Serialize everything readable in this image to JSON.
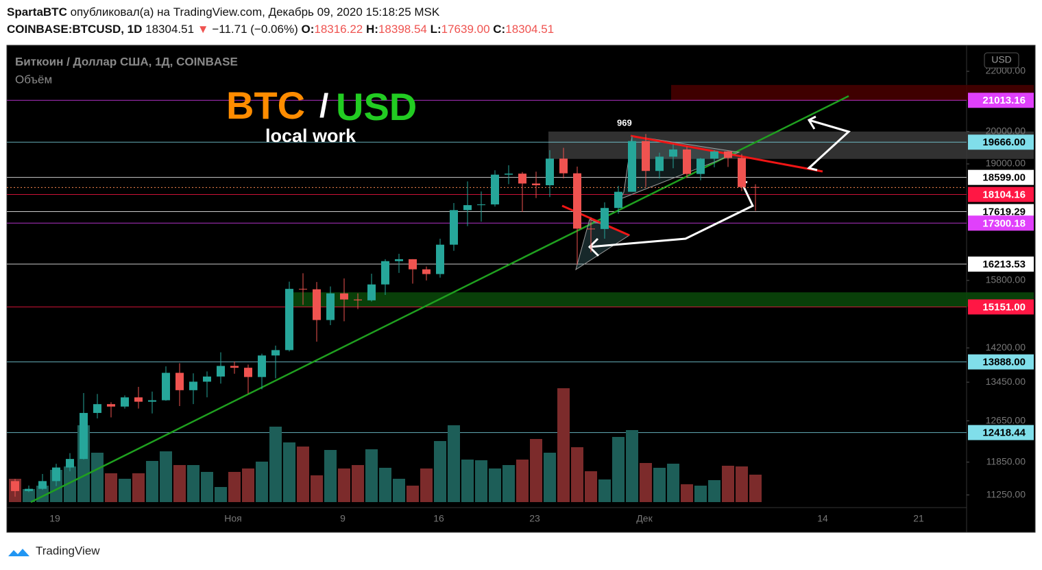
{
  "header": {
    "author": "SpartaBTC",
    "published": "опубликовал(а) на TradingView.com, Декабрь 09, 2020 15:18:25 MSK",
    "symbol": "COINBASE:BTCUSD, 1D",
    "change": "−11.71 (−0.06%)",
    "o": "O:",
    "h": "H:",
    "l": "L:",
    "c": "C:"
  },
  "footer": {
    "brand": "TradingView"
  },
  "chart_data": {
    "type": "candlestick",
    "legend_title": "Биткоин / Доллар США, 1Д, COINBASE",
    "volume_label": "Объём",
    "currency": "USD",
    "annotations": {
      "title_left": "BTC",
      "title_slash": "/",
      "title_right": "USD",
      "subtitle": "local work",
      "peak_label": "969"
    },
    "log_scale": true,
    "ylim": [
      11124,
      22926
    ],
    "yticks": [
      {
        "value": 22000,
        "label": "22000.00"
      },
      {
        "value": 20000,
        "label": "20000.00"
      },
      {
        "value": 19000,
        "label": "19000.00"
      },
      {
        "value": 15800,
        "label": "15800.00"
      },
      {
        "value": 14200,
        "label": "14200.00"
      },
      {
        "value": 13450,
        "label": "13450.00"
      },
      {
        "value": 12650,
        "label": "12650.00"
      },
      {
        "value": 11850,
        "label": "11850.00"
      },
      {
        "value": 11250,
        "label": "11250.00"
      }
    ],
    "categories": [
      null,
      null,
      null,
      "19",
      null,
      null,
      null,
      null,
      null,
      null,
      null,
      null,
      null,
      null,
      null,
      null,
      "Ноя",
      null,
      null,
      null,
      null,
      null,
      null,
      null,
      "9",
      null,
      null,
      null,
      null,
      null,
      null,
      "16",
      null,
      null,
      null,
      null,
      null,
      null,
      "23",
      null,
      null,
      null,
      null,
      null,
      null,
      null,
      "Дек",
      null,
      null,
      null,
      null,
      null,
      null,
      null,
      null,
      null,
      null,
      null,
      null,
      "14",
      null,
      null,
      null,
      null,
      null,
      null,
      "21",
      null,
      null,
      null
    ],
    "open": [
      11500,
      11320,
      11360,
      11500,
      11750,
      11910,
      12810,
      12990,
      12940,
      13130,
      13040,
      13070,
      13650,
      13280,
      13460,
      13570,
      13800,
      13760,
      13560,
      14030,
      14150,
      15590,
      15580,
      14840,
      15480,
      15330,
      15310,
      15700,
      16290,
      16340,
      16080,
      15960,
      16720,
      17660,
      17800,
      17820,
      18680,
      18710,
      18420,
      18370,
      19160,
      18720,
      17150,
      17140,
      17720,
      18180,
      19700,
      18790,
      19220,
      19440,
      18700,
      19160,
      19380,
      19180,
      18316.22,
      null,
      null,
      null,
      null,
      null,
      null,
      null,
      null,
      null,
      null,
      null,
      null,
      null,
      null,
      null
    ],
    "high": [
      11540,
      11420,
      11630,
      11820,
      12020,
      13220,
      13200,
      13030,
      13170,
      13350,
      13250,
      13790,
      13860,
      13640,
      13680,
      14100,
      13900,
      13830,
      14070,
      14250,
      15770,
      15980,
      15760,
      15650,
      15850,
      15480,
      15970,
      16340,
      16480,
      16340,
      16150,
      16880,
      17860,
      18480,
      18190,
      18810,
      18960,
      18760,
      18770,
      19420,
      19490,
      18920,
      17460,
      17880,
      18350,
      19860,
      19920,
      19340,
      19600,
      19530,
      19180,
      19420,
      19410,
      19300,
      18398.54,
      null,
      null,
      null,
      null,
      null,
      null,
      null,
      null,
      null,
      null,
      null,
      null,
      null,
      null,
      null
    ],
    "low": [
      11220,
      11300,
      11340,
      11410,
      11680,
      11900,
      12700,
      12720,
      12900,
      12900,
      12800,
      13060,
      12950,
      12990,
      13130,
      13420,
      13630,
      13210,
      13300,
      13530,
      14120,
      15200,
      14340,
      14720,
      14810,
      15100,
      15280,
      15440,
      15990,
      15720,
      15800,
      15870,
      16560,
      17220,
      17340,
      17760,
      18400,
      17610,
      18000,
      18030,
      18570,
      16200,
      16520,
      16880,
      17560,
      18180,
      18320,
      18570,
      18870,
      18580,
      18510,
      18900,
      18910,
      18200,
      17639.0,
      null,
      null,
      null,
      null,
      null,
      null,
      null,
      null,
      null,
      null,
      null,
      null,
      null,
      null,
      null
    ],
    "close": [
      11320,
      11360,
      11500,
      11750,
      11910,
      12810,
      12990,
      12940,
      13130,
      13040,
      13070,
      13650,
      13280,
      13460,
      13570,
      13800,
      13760,
      13560,
      14030,
      14150,
      15590,
      15580,
      14840,
      15480,
      15330,
      15310,
      15700,
      16290,
      16340,
      16080,
      15960,
      16720,
      17660,
      17800,
      17820,
      18680,
      18710,
      18420,
      18370,
      19160,
      18720,
      17150,
      17140,
      17720,
      18180,
      19700,
      18790,
      19220,
      19440,
      18700,
      19160,
      19380,
      19180,
      18316,
      18304.51,
      null,
      null,
      null,
      null,
      null,
      null,
      null,
      null,
      null,
      null,
      null,
      null,
      null,
      null,
      null
    ],
    "volume": [
      34,
      19,
      24,
      47,
      52,
      112,
      72,
      42,
      34,
      42,
      60,
      74,
      54,
      54,
      44,
      22,
      44,
      49,
      59,
      110,
      87,
      81,
      39,
      76,
      49,
      54,
      77,
      50,
      34,
      24,
      49,
      89,
      112,
      62,
      61,
      49,
      54,
      62,
      92,
      72,
      166,
      80,
      45,
      33,
      95,
      105,
      57,
      50,
      56,
      26,
      24,
      32,
      53,
      52,
      40,
      null,
      null,
      null,
      null,
      null,
      null,
      null,
      null,
      null,
      null,
      null,
      null,
      null,
      null,
      null
    ],
    "last_labels": {
      "open": "18316.22",
      "high": "18398.54",
      "low": "17639.00",
      "close": "18304.51"
    },
    "up_color": "#26a69a",
    "down_color": "#ef5350",
    "up_volume_color": "#1d5e58",
    "down_volume_color": "#7c2b2b",
    "levels": [
      {
        "value": 21013.16,
        "label": "21013.16",
        "color": "#e040fb",
        "text_color": "#ffffff"
      },
      {
        "value": 19666,
        "label": "19666.00",
        "color": "#80deea",
        "text_color": "#000000"
      },
      {
        "value": 18599,
        "label": "18599.00",
        "color": "#ffffff",
        "text_color": "#000000"
      },
      {
        "value": 18104.16,
        "label": "18104.16",
        "color": "#ff1744",
        "text_color": "#ffffff"
      },
      {
        "value": 17619.29,
        "label": "17619.29",
        "color": "#ffffff",
        "text_color": "#000000"
      },
      {
        "value": 17300.18,
        "label": "17300.18",
        "color": "#e040fb",
        "text_color": "#ffffff"
      },
      {
        "value": 16213.53,
        "label": "16213.53",
        "color": "#ffffff",
        "text_color": "#000000"
      },
      {
        "value": 15151,
        "label": "15151.00",
        "color": "#ff1744",
        "text_color": "#ffffff"
      },
      {
        "value": 13888,
        "label": "13888.00",
        "color": "#80deea",
        "text_color": "#000000"
      },
      {
        "value": 12418.44,
        "label": "12418.44",
        "color": "#80deea",
        "text_color": "#000000"
      }
    ],
    "zones": [
      {
        "low": 21013.16,
        "high": 21530,
        "color": "#4a0000"
      },
      {
        "low": 19150,
        "high": 20000,
        "color": "#3a3a3a"
      },
      {
        "low": 15151,
        "high": 15505,
        "color": "#0b4a0b"
      }
    ]
  }
}
